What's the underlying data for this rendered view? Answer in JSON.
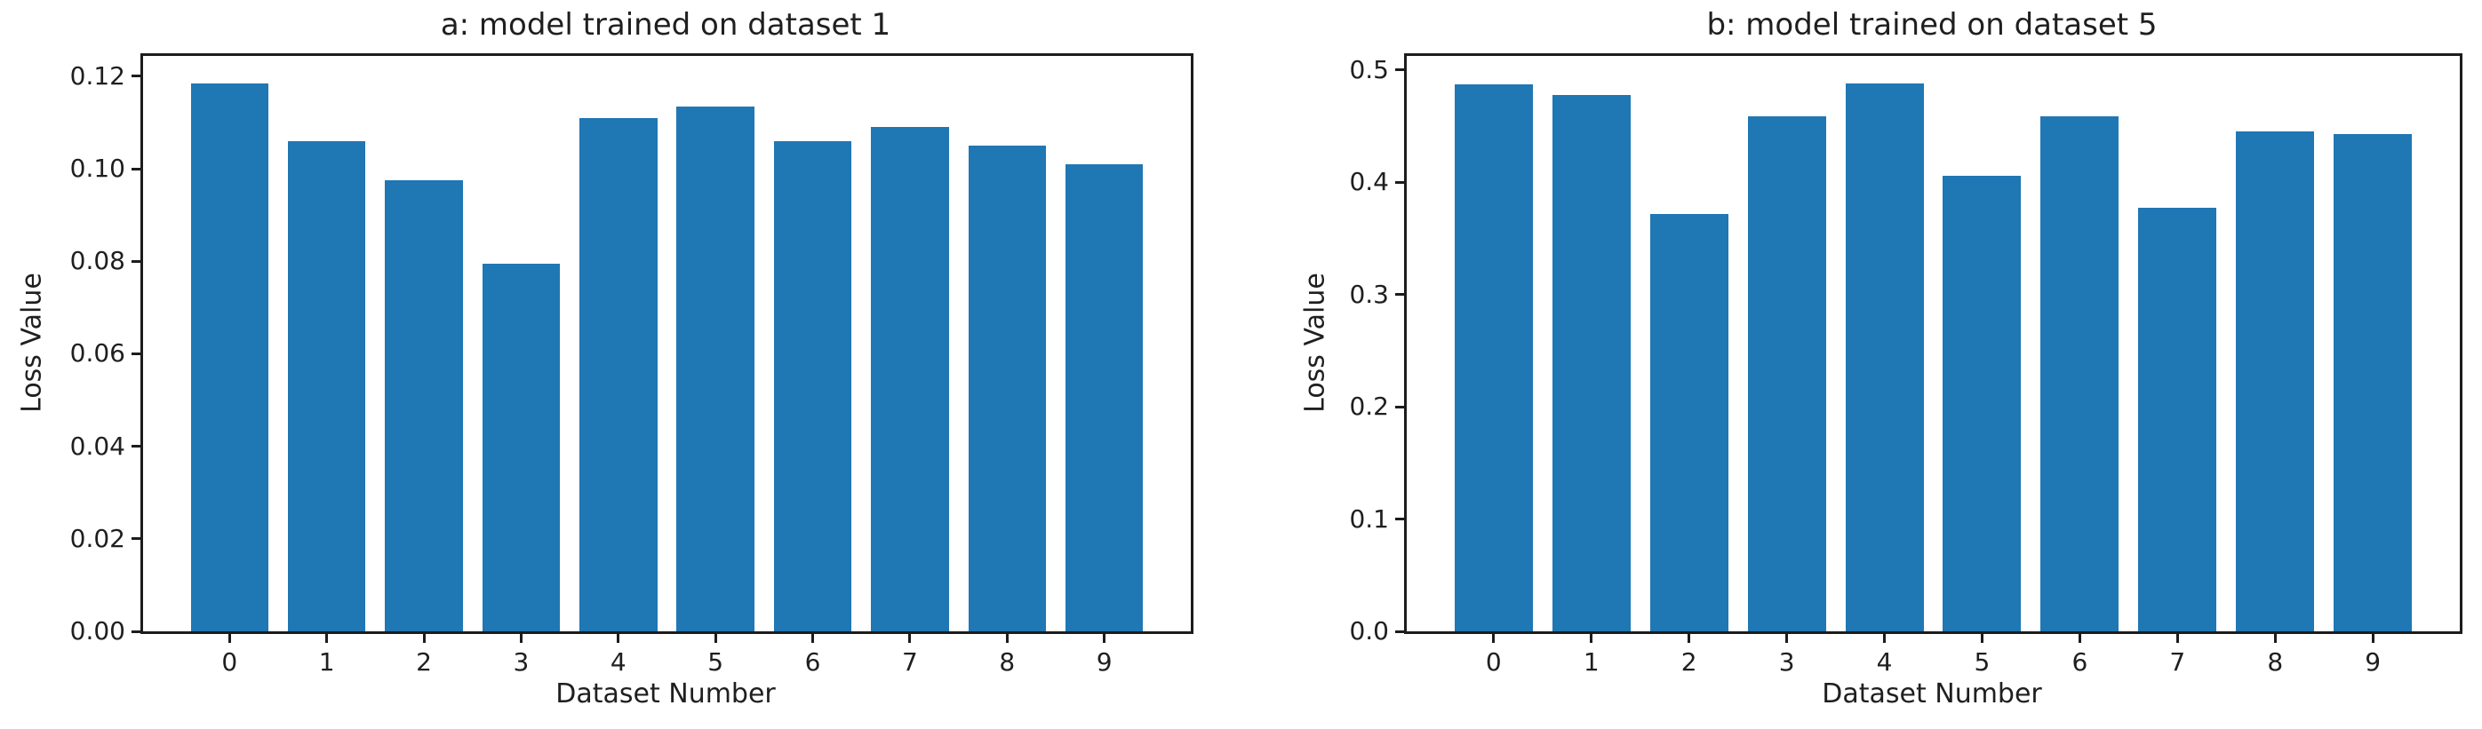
{
  "figure": {
    "background_color": "#ffffff",
    "bar_color": "#1f77b4",
    "axis_color": "#1c1c1c",
    "text_color": "#1f1f1f"
  },
  "chart_data": [
    {
      "type": "bar",
      "title": "a: model trained on dataset 1",
      "xlabel": "Dataset Number",
      "ylabel": "Loss Value",
      "categories": [
        "0",
        "1",
        "2",
        "3",
        "4",
        "5",
        "6",
        "7",
        "8",
        "9"
      ],
      "values": [
        0.1185,
        0.106,
        0.0975,
        0.0795,
        0.111,
        0.1135,
        0.106,
        0.109,
        0.105,
        0.101
      ],
      "ylim": [
        0,
        0.1244
      ],
      "yticks": [
        0,
        0.02,
        0.04,
        0.06,
        0.08,
        0.1,
        0.12
      ],
      "ytick_labels": [
        "0.00",
        "0.02",
        "0.04",
        "0.06",
        "0.08",
        "0.10",
        "0.12"
      ],
      "grid": false,
      "legend": "none"
    },
    {
      "type": "bar",
      "title": "b: model trained on dataset 5",
      "xlabel": "Dataset Number",
      "ylabel": "Loss Value",
      "categories": [
        "0",
        "1",
        "2",
        "3",
        "4",
        "5",
        "6",
        "7",
        "8",
        "9"
      ],
      "values": [
        0.487,
        0.478,
        0.372,
        0.459,
        0.488,
        0.406,
        0.459,
        0.377,
        0.445,
        0.443
      ],
      "ylim": [
        0,
        0.5124
      ],
      "yticks": [
        0,
        0.1,
        0.2,
        0.3,
        0.4,
        0.5
      ],
      "ytick_labels": [
        "0.0",
        "0.1",
        "0.2",
        "0.3",
        "0.4",
        "0.5"
      ],
      "grid": false,
      "legend": "none"
    }
  ]
}
